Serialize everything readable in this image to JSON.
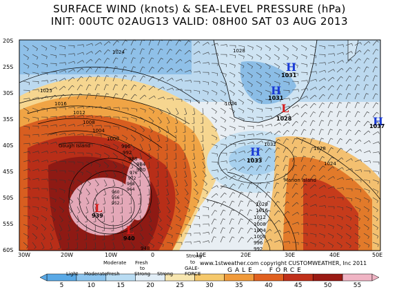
{
  "title": {
    "line1": "SURFACE WIND (knots) & SEA-LEVEL PRESSURE (hPa)",
    "line2": "INIT: 00UTC 02AUG13   VALID: 08H00 SAT 03 AUG 2013"
  },
  "lat_labels": [
    "20S",
    "25S",
    "30S",
    "35S",
    "40S",
    "45S",
    "50S",
    "55S",
    "60S"
  ],
  "lon_labels": [
    "30W",
    "20W",
    "10W",
    "0",
    "10E",
    "20E",
    "30E",
    "40E",
    "50E"
  ],
  "pressure_centers": [
    {
      "type": "H",
      "value": "1031",
      "color": "#1a3bd6"
    },
    {
      "type": "H",
      "value": "1031",
      "color": "#1a3bd6"
    },
    {
      "type": "L",
      "value": "1028",
      "color": "#d61a1a"
    },
    {
      "type": "H",
      "value": "1037",
      "color": "#1a3bd6"
    },
    {
      "type": "H",
      "value": "1033",
      "color": "#1a3bd6"
    },
    {
      "type": "L",
      "value": "939",
      "color": "#d61a1a"
    },
    {
      "type": "L",
      "value": "940",
      "color": "#d61a1a"
    }
  ],
  "isobar_labels": [
    "1024",
    "1028",
    "1025",
    "1024",
    "1016",
    "1012",
    "1008",
    "1004",
    "1000",
    "996",
    "992",
    "988",
    "984",
    "980",
    "976",
    "972",
    "968",
    "964",
    "960",
    "956",
    "952",
    "948",
    "1032",
    "1028",
    "1024",
    "1020",
    "1016",
    "1012",
    "1008",
    "1004",
    "1000",
    "996",
    "992"
  ],
  "places": [
    "Gough Island",
    "Marion Island"
  ],
  "colorbar": {
    "values": [
      "5",
      "10",
      "15",
      "20",
      "25",
      "30",
      "35",
      "40",
      "45",
      "50",
      "55"
    ],
    "colors": [
      "#5aa9e6",
      "#8cc4ee",
      "#b9dcf3",
      "#e2eef7",
      "#f7e6b0",
      "#f5c86b",
      "#f09a3a",
      "#e0601f",
      "#c0301a",
      "#9a1a14",
      "#f0b4c4"
    ]
  },
  "categories": [
    "Light",
    "Moderate",
    "Moderate",
    "Fresh",
    "Fresh",
    "to",
    "Strong",
    "Strong",
    "Strong",
    "to",
    "GALE-",
    "FORCE"
  ],
  "gale_text": "GALE - FORCE",
  "copyright": "www.1stweather.com copyright CUSTOMWEATHER, Inc 2011"
}
